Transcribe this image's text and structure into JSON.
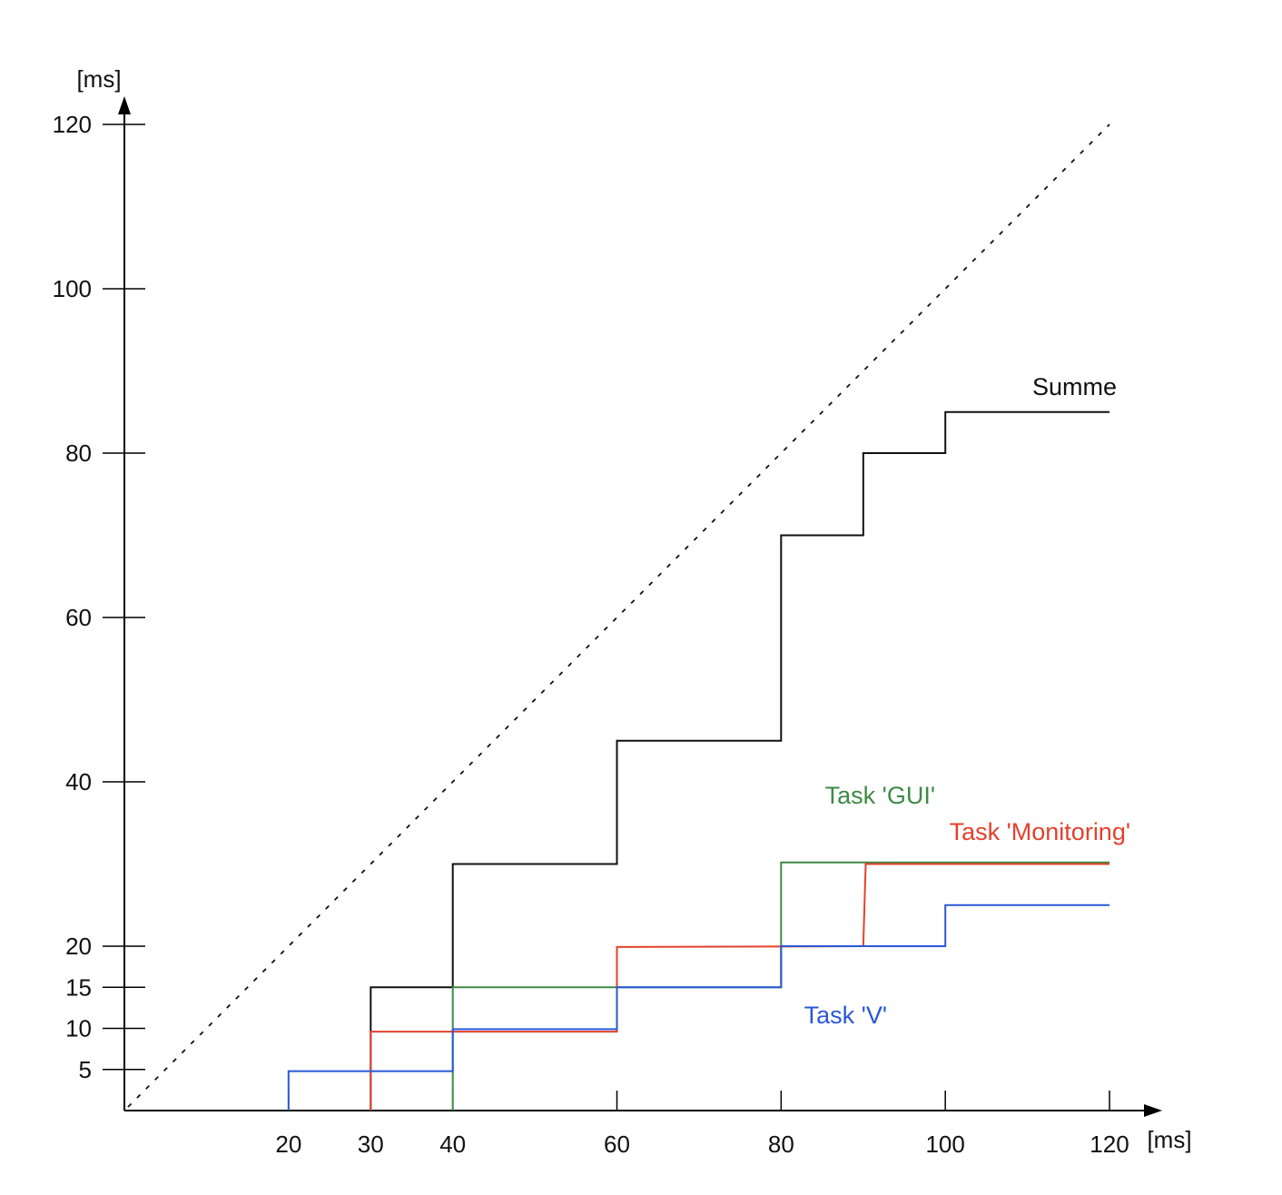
{
  "chart_data": {
    "type": "line",
    "step": true,
    "title": "",
    "xlabel": "[ms]",
    "ylabel": "[ms]",
    "xlim": [
      0,
      120
    ],
    "ylim": [
      0,
      120
    ],
    "x_ticks": [
      20,
      30,
      40,
      60,
      80,
      100,
      120
    ],
    "y_ticks": [
      5,
      10,
      15,
      20,
      40,
      60,
      80,
      100,
      120
    ],
    "grid": false,
    "reference_line": {
      "style": "dotted",
      "points": [
        [
          0,
          0
        ],
        [
          120,
          120
        ]
      ],
      "color": "#111111"
    },
    "series": [
      {
        "name": "Summe",
        "color": "#111111",
        "points": [
          [
            30,
            0
          ],
          [
            30,
            15
          ],
          [
            40,
            15
          ],
          [
            40,
            30
          ],
          [
            60,
            30
          ],
          [
            60,
            45
          ],
          [
            80,
            45
          ],
          [
            80,
            70
          ],
          [
            90,
            70
          ],
          [
            90,
            80
          ],
          [
            100,
            80
          ],
          [
            100,
            85
          ],
          [
            120,
            85
          ]
        ]
      },
      {
        "name": "Task 'GUI'",
        "color": "#3f8a47",
        "points": [
          [
            40,
            0
          ],
          [
            40,
            15
          ],
          [
            80,
            15
          ],
          [
            80,
            30.2
          ],
          [
            120,
            30.2
          ]
        ]
      },
      {
        "name": "Task 'Monitoring'",
        "color": "#e3412c",
        "points": [
          [
            30,
            0
          ],
          [
            30,
            9.6
          ],
          [
            60,
            9.6
          ],
          [
            60,
            19.9
          ],
          [
            90,
            20.0
          ],
          [
            90.3,
            30
          ],
          [
            120,
            30
          ]
        ]
      },
      {
        "name": "Task 'V'",
        "color": "#2b57d6",
        "points": [
          [
            20,
            0
          ],
          [
            20,
            4.8
          ],
          [
            40,
            4.8
          ],
          [
            40,
            9.9
          ],
          [
            60,
            9.9
          ],
          [
            60,
            15
          ],
          [
            80,
            15
          ],
          [
            80,
            20
          ],
          [
            100,
            20
          ],
          [
            100,
            25
          ],
          [
            120,
            25
          ]
        ]
      }
    ]
  }
}
